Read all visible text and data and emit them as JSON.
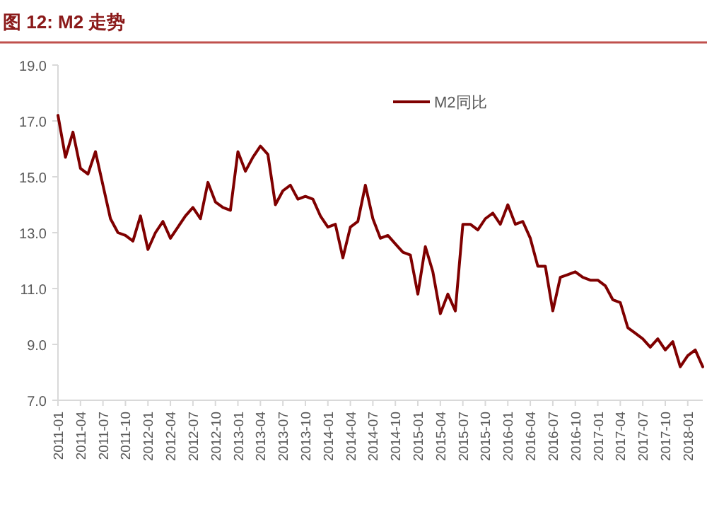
{
  "chart_data": {
    "type": "line",
    "title": "图 12:  M2 走势",
    "legend": "top right",
    "grid": false,
    "line_style": "solid",
    "x": [
      "2011-01",
      "2011-02",
      "2011-03",
      "2011-04",
      "2011-05",
      "2011-06",
      "2011-07",
      "2011-08",
      "2011-09",
      "2011-10",
      "2011-11",
      "2011-12",
      "2012-01",
      "2012-02",
      "2012-03",
      "2012-04",
      "2012-05",
      "2012-06",
      "2012-07",
      "2012-08",
      "2012-09",
      "2012-10",
      "2012-11",
      "2012-12",
      "2013-01",
      "2013-02",
      "2013-03",
      "2013-04",
      "2013-05",
      "2013-06",
      "2013-07",
      "2013-08",
      "2013-09",
      "2013-10",
      "2013-11",
      "2013-12",
      "2014-01",
      "2014-02",
      "2014-03",
      "2014-04",
      "2014-05",
      "2014-06",
      "2014-07",
      "2014-08",
      "2014-09",
      "2014-10",
      "2014-11",
      "2014-12",
      "2015-01",
      "2015-02",
      "2015-03",
      "2015-04",
      "2015-05",
      "2015-06",
      "2015-07",
      "2015-08",
      "2015-09",
      "2015-10",
      "2015-11",
      "2015-12",
      "2016-01",
      "2016-02",
      "2016-03",
      "2016-04",
      "2016-05",
      "2016-06",
      "2016-07",
      "2016-08",
      "2016-09",
      "2016-10",
      "2016-11",
      "2016-12",
      "2017-01",
      "2017-02",
      "2017-03",
      "2017-04",
      "2017-05",
      "2017-06",
      "2017-07",
      "2017-08",
      "2017-09",
      "2017-10",
      "2017-11",
      "2017-12",
      "2018-01",
      "2018-02",
      "2018-03"
    ],
    "series": [
      {
        "name": "M2同比",
        "color": "#7f0000",
        "values": [
          17.2,
          15.7,
          16.6,
          15.3,
          15.1,
          15.9,
          14.7,
          13.5,
          13.0,
          12.9,
          12.7,
          13.6,
          12.4,
          13.0,
          13.4,
          12.8,
          13.2,
          13.6,
          13.9,
          13.5,
          14.8,
          14.1,
          13.9,
          13.8,
          15.9,
          15.2,
          15.7,
          16.1,
          15.8,
          14.0,
          14.5,
          14.7,
          14.2,
          14.3,
          14.2,
          13.6,
          13.2,
          13.3,
          12.1,
          13.2,
          13.4,
          14.7,
          13.5,
          12.8,
          12.9,
          12.6,
          12.3,
          12.2,
          10.8,
          12.5,
          11.6,
          10.1,
          10.8,
          10.2,
          13.3,
          13.3,
          13.1,
          13.5,
          13.7,
          13.3,
          14.0,
          13.3,
          13.4,
          12.8,
          11.8,
          11.8,
          10.2,
          11.4,
          11.5,
          11.6,
          11.4,
          11.3,
          11.3,
          11.1,
          10.6,
          10.5,
          9.6,
          9.4,
          9.2,
          8.9,
          9.2,
          8.8,
          9.1,
          8.2,
          8.6,
          8.8,
          8.2
        ]
      }
    ],
    "xlim": [
      "2011-01",
      "2018-03"
    ],
    "xticks": [
      "2011-01",
      "2011-04",
      "2011-07",
      "2011-10",
      "2012-01",
      "2012-04",
      "2012-07",
      "2012-10",
      "2013-01",
      "2013-04",
      "2013-07",
      "2013-10",
      "2014-01",
      "2014-04",
      "2014-07",
      "2014-10",
      "2015-01",
      "2015-04",
      "2015-07",
      "2015-10",
      "2016-01",
      "2016-04",
      "2016-07",
      "2016-10",
      "2017-01",
      "2017-04",
      "2017-07",
      "2017-10",
      "2018-01"
    ],
    "ylim": [
      7,
      19
    ],
    "yticks": [
      {
        "value": 7,
        "label": "7.0"
      },
      {
        "value": 9,
        "label": "9.0"
      },
      {
        "value": 11,
        "label": "11.0"
      },
      {
        "value": 13,
        "label": "13.0"
      },
      {
        "value": 15,
        "label": "15.0"
      },
      {
        "value": 17,
        "label": "17.0"
      },
      {
        "value": 19,
        "label": "19.0"
      }
    ]
  }
}
